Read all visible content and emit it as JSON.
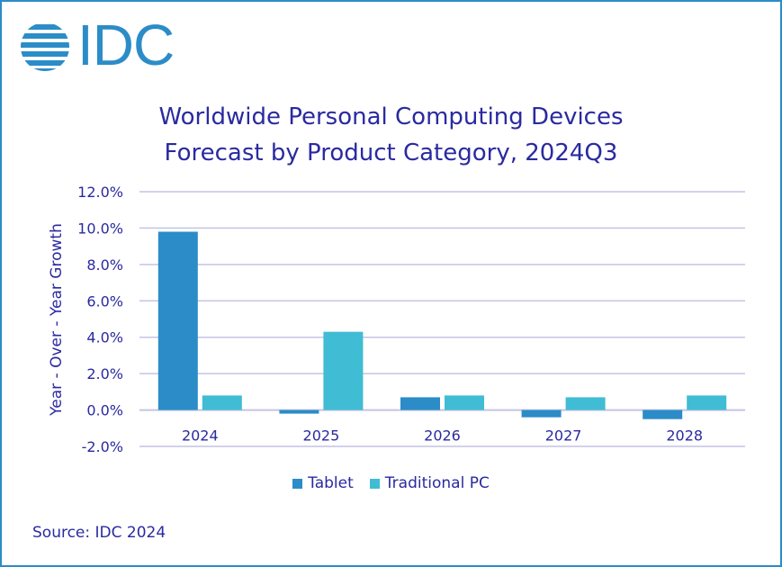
{
  "logo": {
    "text": "IDC"
  },
  "chart_data": {
    "type": "bar",
    "title": "Worldwide Personal Computing Devices Forecast by Product Category, 2024Q3",
    "title_lines": [
      "Worldwide Personal Computing Devices",
      "Forecast by Product Category, 2024Q3"
    ],
    "xlabel": "",
    "ylabel": "Year - Over - Year Growth",
    "categories": [
      "2024",
      "2025",
      "2026",
      "2027",
      "2028"
    ],
    "series": [
      {
        "name": "Tablet",
        "color": "#2b8cc8",
        "values": [
          9.8,
          -0.2,
          0.7,
          -0.4,
          -0.5
        ]
      },
      {
        "name": "Traditional PC",
        "color": "#40bcd4",
        "values": [
          0.8,
          4.3,
          0.8,
          0.7,
          0.8
        ]
      }
    ],
    "ylim": [
      -2,
      12
    ],
    "yticks": [
      -2,
      0,
      2,
      4,
      6,
      8,
      10,
      12
    ],
    "ytick_labels": [
      "-2.0%",
      "0.0%",
      "2.0%",
      "4.0%",
      "6.0%",
      "8.0%",
      "10.0%",
      "12.0%"
    ],
    "grid": true,
    "legend_position": "bottom"
  },
  "source": "Source: IDC 2024"
}
